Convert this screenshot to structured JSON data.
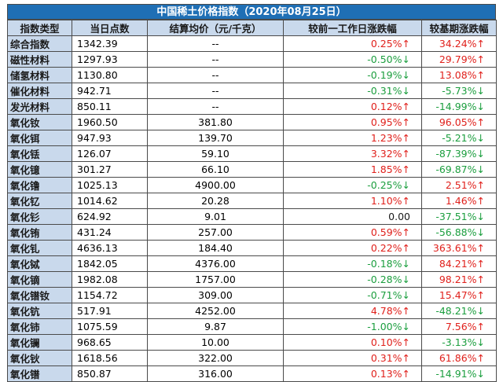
{
  "title": "中国稀土价格指数（2020年08月25日）",
  "headers": [
    "指数类型",
    "当日点数",
    "结算均价（元/千克）",
    "较前一工作日涨跌幅",
    "较基期涨跌幅"
  ],
  "colors": {
    "up": "#e0201b",
    "down": "#1b9e3e",
    "header_bg": "#c9d9ec",
    "title_bg": "#1f6fb5"
  },
  "rows": [
    {
      "name": "综合指数",
      "points": "1342.39",
      "price": "--",
      "chg1": "0.25%↑",
      "dir1": "up",
      "chg2": "34.24%↑",
      "dir2": "up"
    },
    {
      "name": "磁性材料",
      "points": "1297.93",
      "price": "--",
      "chg1": "-0.50%↓",
      "dir1": "down",
      "chg2": "29.79%↑",
      "dir2": "up"
    },
    {
      "name": "储氢材料",
      "points": "1130.80",
      "price": "--",
      "chg1": "-0.19%↓",
      "dir1": "down",
      "chg2": "13.08%↑",
      "dir2": "up"
    },
    {
      "name": "催化材料",
      "points": "942.71",
      "price": "--",
      "chg1": "-0.31%↓",
      "dir1": "down",
      "chg2": "-5.73%↓",
      "dir2": "down"
    },
    {
      "name": "发光材料",
      "points": "850.11",
      "price": "--",
      "chg1": "0.12%↑",
      "dir1": "up",
      "chg2": "-14.99%↓",
      "dir2": "down"
    },
    {
      "name": "氧化钕",
      "points": "1960.50",
      "price": "381.80",
      "chg1": "0.95%↑",
      "dir1": "up",
      "chg2": "96.05%↑",
      "dir2": "up"
    },
    {
      "name": "氧化铒",
      "points": "947.93",
      "price": "139.70",
      "chg1": "1.23%↑",
      "dir1": "up",
      "chg2": "-5.21%↓",
      "dir2": "down"
    },
    {
      "name": "氧化铥",
      "points": "126.07",
      "price": "59.10",
      "chg1": "3.32%↑",
      "dir1": "up",
      "chg2": "-87.39%↓",
      "dir2": "down"
    },
    {
      "name": "氧化镱",
      "points": "301.27",
      "price": "66.10",
      "chg1": "1.85%↑",
      "dir1": "up",
      "chg2": "-69.87%↓",
      "dir2": "down"
    },
    {
      "name": "氧化镥",
      "points": "1025.13",
      "price": "4900.00",
      "chg1": "-0.25%↓",
      "dir1": "down",
      "chg2": "2.51%↑",
      "dir2": "up"
    },
    {
      "name": "氧化钇",
      "points": "1014.62",
      "price": "20.28",
      "chg1": "1.10%↑",
      "dir1": "up",
      "chg2": "1.46%↑",
      "dir2": "up"
    },
    {
      "name": "氧化钐",
      "points": "624.92",
      "price": "9.01",
      "chg1": "0.00",
      "dir1": "flat",
      "chg2": "-37.51%↓",
      "dir2": "down"
    },
    {
      "name": "氧化铕",
      "points": "431.24",
      "price": "257.00",
      "chg1": "0.59%↑",
      "dir1": "up",
      "chg2": "-56.88%↓",
      "dir2": "down"
    },
    {
      "name": "氧化钆",
      "points": "4636.13",
      "price": "184.40",
      "chg1": "0.22%↑",
      "dir1": "up",
      "chg2": "363.61%↑",
      "dir2": "up"
    },
    {
      "name": "氧化铽",
      "points": "1842.05",
      "price": "4376.00",
      "chg1": "-0.18%↓",
      "dir1": "down",
      "chg2": "84.21%↑",
      "dir2": "up"
    },
    {
      "name": "氧化镝",
      "points": "1982.08",
      "price": "1757.00",
      "chg1": "-0.28%↓",
      "dir1": "down",
      "chg2": "98.21%↑",
      "dir2": "up"
    },
    {
      "name": "氧化镨钕",
      "points": "1154.72",
      "price": "309.00",
      "chg1": "-0.71%↓",
      "dir1": "down",
      "chg2": "15.47%↑",
      "dir2": "up"
    },
    {
      "name": "氧化钪",
      "points": "517.91",
      "price": "4252.00",
      "chg1": "4.78%↑",
      "dir1": "up",
      "chg2": "-48.21%↓",
      "dir2": "down"
    },
    {
      "name": "氧化铈",
      "points": "1075.59",
      "price": "9.87",
      "chg1": "-1.00%↓",
      "dir1": "down",
      "chg2": "7.56%↑",
      "dir2": "up"
    },
    {
      "name": "氧化镧",
      "points": "968.65",
      "price": "10.00",
      "chg1": "0.10%↑",
      "dir1": "up",
      "chg2": "-3.13%↓",
      "dir2": "down"
    },
    {
      "name": "氧化钬",
      "points": "1618.56",
      "price": "322.00",
      "chg1": "0.31%↑",
      "dir1": "up",
      "chg2": "61.86%↑",
      "dir2": "up"
    },
    {
      "name": "氧化镨",
      "points": "850.87",
      "price": "316.00",
      "chg1": "0.13%↑",
      "dir1": "up",
      "chg2": "-14.91%↓",
      "dir2": "down"
    }
  ]
}
